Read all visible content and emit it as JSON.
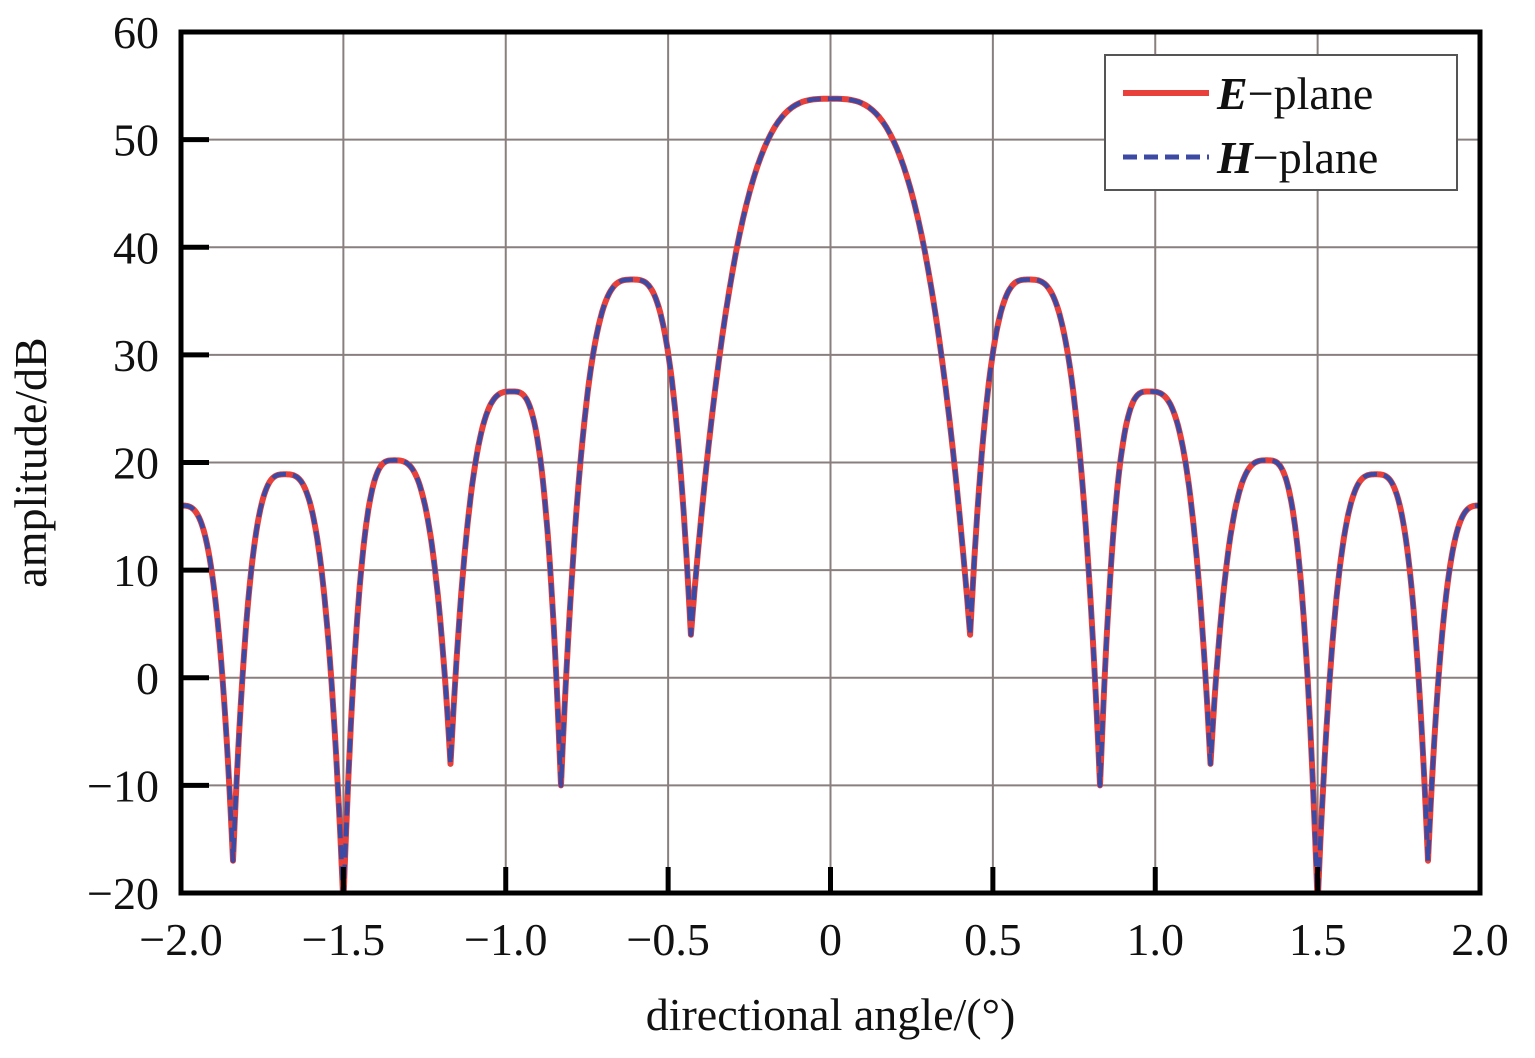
{
  "chart_data": {
    "type": "line",
    "title": "",
    "xlabel": "directional angle/(°)",
    "ylabel": "amplitude/dB",
    "xlim": [
      -2.0,
      2.0
    ],
    "ylim": [
      -20,
      60
    ],
    "grid": true,
    "legend_position": "top-right",
    "x_ticks": [
      "−2.0",
      "−1.5",
      "−1.0",
      "−0.5",
      "0",
      "0.5",
      "1.0",
      "1.5",
      "2.0"
    ],
    "x_tick_values": [
      -2.0,
      -1.5,
      -1.0,
      -0.5,
      0,
      0.5,
      1.0,
      1.5,
      2.0
    ],
    "y_ticks": [
      "−20",
      "−10",
      "0",
      "10",
      "20",
      "30",
      "40",
      "50",
      "60"
    ],
    "y_tick_values": [
      -20,
      -10,
      0,
      10,
      20,
      30,
      40,
      50,
      60
    ],
    "series": [
      {
        "name": "E−plane",
        "name_em": "E",
        "name_rest": "−plane",
        "color": "#e8403a",
        "dash": "solid",
        "x": [
          -2.0,
          -1.68,
          -1.345,
          -0.98,
          -0.61,
          0.0,
          0.61,
          0.98,
          1.345,
          1.68,
          2.0
        ],
        "y": [
          16,
          18.9,
          20.2,
          26.6,
          37,
          53.8,
          37,
          26.6,
          20.2,
          18.9,
          16
        ],
        "nulls": [
          {
            "x": -1.84,
            "y": -17
          },
          {
            "x": -1.5,
            "y": -21
          },
          {
            "x": -1.17,
            "y": -8
          },
          {
            "x": -0.83,
            "y": -10
          },
          {
            "x": -0.43,
            "y": 4
          },
          {
            "x": 0.43,
            "y": 4
          },
          {
            "x": 0.83,
            "y": -10
          },
          {
            "x": 1.17,
            "y": -8
          },
          {
            "x": 1.5,
            "y": -21
          },
          {
            "x": 1.84,
            "y": -17
          }
        ]
      },
      {
        "name": "H−plane",
        "name_em": "H",
        "name_rest": "−plane",
        "color": "#3c4aa3",
        "dash": "dashed",
        "x": [
          -2.0,
          -1.68,
          -1.345,
          -0.98,
          -0.61,
          0.0,
          0.61,
          0.98,
          1.345,
          1.68,
          2.0
        ],
        "y": [
          16,
          18.9,
          20.2,
          26.6,
          37,
          53.8,
          37,
          26.6,
          20.2,
          18.9,
          16
        ],
        "nulls": [
          {
            "x": -1.84,
            "y": -17
          },
          {
            "x": -1.5,
            "y": -21
          },
          {
            "x": -1.17,
            "y": -8
          },
          {
            "x": -0.83,
            "y": -10
          },
          {
            "x": -0.43,
            "y": 4
          },
          {
            "x": 0.43,
            "y": 4
          },
          {
            "x": 0.83,
            "y": -10
          },
          {
            "x": 1.17,
            "y": -8
          },
          {
            "x": 1.5,
            "y": -21
          },
          {
            "x": 1.84,
            "y": -17
          }
        ]
      }
    ]
  }
}
